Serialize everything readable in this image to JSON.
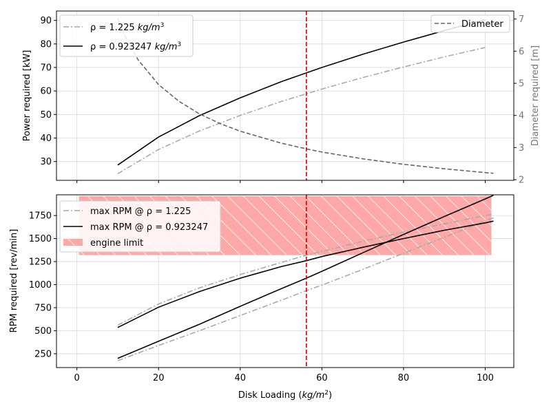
{
  "colors": {
    "dashdot": "#a9a9a9",
    "solid": "#000000",
    "diameter": "#666666",
    "vline": "#d00000",
    "engine_fill": "#ffa8a8",
    "grid": "#d9d9d9",
    "right_axis_text": "#777777"
  },
  "chart_data": [
    {
      "type": "line",
      "position": "top",
      "xlabel": "",
      "ylabel": "Power required [kW]",
      "y2label": "Diameter required [m]",
      "xlim": [
        -5,
        107
      ],
      "ylim": [
        22,
        94
      ],
      "y2lim": [
        1.98,
        7.25
      ],
      "yticks": [
        "30",
        "40",
        "50",
        "60",
        "70",
        "80",
        "90"
      ],
      "y2ticks": [
        "2",
        "3",
        "4",
        "5",
        "6",
        "7"
      ],
      "grid": true,
      "vline_x": 56.2,
      "legend_left": {
        "placement": "upper-left",
        "entries": [
          {
            "label_main": "ρ = 1.225 ",
            "label_unit": "kg/m",
            "label_exp": "3"
          },
          {
            "label_main": "ρ = 0.923247 ",
            "label_unit": "kg/m",
            "label_exp": "3"
          }
        ]
      },
      "legend_right": {
        "placement": "upper-right",
        "label": "Diameter"
      },
      "series": [
        {
          "style": "dashdot",
          "axis": "left",
          "x": [
            10,
            20,
            30,
            40,
            50,
            56.2,
            60,
            70,
            80,
            90,
            100
          ],
          "y": [
            24.8,
            35.1,
            43.0,
            49.6,
            55.5,
            58.8,
            60.8,
            65.7,
            70.2,
            74.5,
            78.5
          ]
        },
        {
          "style": "solid",
          "axis": "left",
          "x": [
            10,
            20,
            30,
            40,
            50,
            56.2,
            60,
            70,
            80,
            90,
            100
          ],
          "y": [
            28.5,
            40.4,
            49.5,
            57.1,
            63.9,
            67.7,
            70.0,
            75.6,
            80.8,
            85.7,
            90.3
          ]
        },
        {
          "style": "diameter",
          "axis": "right",
          "x": [
            10,
            12,
            15,
            20,
            25,
            30,
            35,
            40,
            50,
            56.2,
            60,
            70,
            80,
            90,
            100,
            102
          ],
          "y": [
            7.02,
            6.41,
            5.73,
            4.96,
            4.44,
            4.05,
            3.75,
            3.51,
            3.14,
            2.96,
            2.86,
            2.65,
            2.48,
            2.34,
            2.22,
            2.2
          ]
        }
      ]
    },
    {
      "type": "line",
      "position": "bottom",
      "xlabel_main": "Disk Loading (",
      "xlabel_unit": "kg/m",
      "xlabel_exp": "2",
      "xlabel_close": ")",
      "ylabel": "RPM required [rev/min]",
      "xlim": [
        -5,
        107
      ],
      "ylim": [
        100,
        1975
      ],
      "xticks": [
        "0",
        "20",
        "40",
        "60",
        "80",
        "100"
      ],
      "yticks": [
        "250",
        "500",
        "750",
        "1000",
        "1250",
        "1500",
        "1750"
      ],
      "grid": true,
      "vline_x": 56.2,
      "engine_limit": {
        "x": [
          0.5,
          101.5
        ],
        "y": [
          1320,
          1960
        ]
      },
      "legend": {
        "placement": "upper-left",
        "entries": [
          {
            "style": "dashdot",
            "label": "max RPM @ ρ = 1.225"
          },
          {
            "style": "solid",
            "label": "max RPM @ ρ = 0.923247"
          },
          {
            "style": "engine",
            "label": "engine limit"
          }
        ]
      },
      "series": [
        {
          "style": "dashdot",
          "x": [
            10,
            20,
            30,
            40,
            50,
            56.2,
            60,
            70,
            80,
            90,
            100,
            102
          ],
          "y": [
            560,
            790,
            965,
            1110,
            1240,
            1320,
            1360,
            1470,
            1570,
            1660,
            1750,
            1765
          ]
        },
        {
          "style": "dashdot",
          "x": [
            10,
            20,
            30,
            40,
            50,
            56.2,
            60,
            70,
            80,
            90,
            100,
            102
          ],
          "y": [
            175,
            340,
            500,
            665,
            830,
            935,
            995,
            1165,
            1340,
            1515,
            1690,
            1725
          ]
        },
        {
          "style": "solid",
          "x": [
            10,
            20,
            30,
            40,
            50,
            56.2,
            60,
            70,
            80,
            90,
            100,
            102
          ],
          "y": [
            535,
            755,
            925,
            1070,
            1195,
            1260,
            1305,
            1405,
            1500,
            1590,
            1670,
            1690
          ]
        },
        {
          "style": "solid",
          "x": [
            10,
            20,
            30,
            40,
            50,
            56.2,
            60,
            70,
            80,
            90,
            100,
            102
          ],
          "y": [
            200,
            385,
            570,
            765,
            955,
            1070,
            1145,
            1345,
            1545,
            1740,
            1930,
            1970
          ]
        }
      ]
    }
  ]
}
